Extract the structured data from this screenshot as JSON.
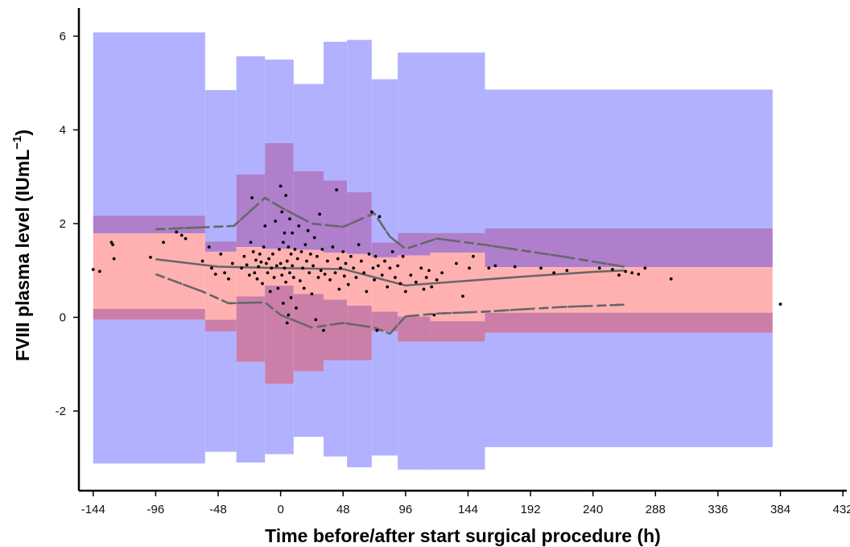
{
  "chart_data": {
    "type": "scatter",
    "title": "",
    "xlabel": "Time before/after start surgical procedure (h)",
    "ylabel": {
      "main": "FVIII plasma level (IUmL",
      "sup": "−1",
      "close": ")"
    },
    "xlim": [
      -155,
      435
    ],
    "ylim": [
      -3.7,
      6.6
    ],
    "xticks": [
      -144,
      -96,
      -48,
      0,
      48,
      96,
      144,
      192,
      240,
      288,
      336,
      384,
      432
    ],
    "yticks": [
      -2,
      0,
      2,
      4,
      6
    ],
    "grid": false,
    "legend": "none",
    "colors": {
      "outer_band": "#b1b1ff",
      "middle_band": "#af7fcb",
      "inner_band": "#ffb1b1",
      "overlap_band": "#cb7fa8",
      "points": "#000000",
      "lines": "#666666"
    },
    "bins": [
      {
        "x": [
          -144,
          -58
        ],
        "outer": [
          -3.12,
          6.08
        ],
        "middle": [
          -0.05,
          2.17
        ],
        "inner": [
          0.18,
          1.79
        ]
      },
      {
        "x": [
          -58,
          -34
        ],
        "outer": [
          -2.87,
          4.85
        ],
        "middle": [
          -0.3,
          1.62
        ],
        "inner": [
          -0.05,
          1.4
        ]
      },
      {
        "x": [
          -34,
          -12
        ],
        "outer": [
          -3.1,
          5.57
        ],
        "middle": [
          -0.95,
          3.05
        ],
        "inner": [
          0.45,
          1.5
        ]
      },
      {
        "x": [
          -12,
          10
        ],
        "outer": [
          -2.92,
          5.5
        ],
        "middle": [
          -1.42,
          3.72
        ],
        "inner": [
          0.68,
          1.46
        ]
      },
      {
        "x": [
          10,
          33
        ],
        "outer": [
          -2.55,
          4.98
        ],
        "middle": [
          -1.15,
          3.12
        ],
        "inner": [
          0.5,
          1.44
        ]
      },
      {
        "x": [
          33,
          51
        ],
        "outer": [
          -2.97,
          5.88
        ],
        "middle": [
          -0.92,
          2.92
        ],
        "inner": [
          0.38,
          1.38
        ]
      },
      {
        "x": [
          51,
          70
        ],
        "outer": [
          -3.2,
          5.92
        ],
        "middle": [
          -0.92,
          2.67
        ],
        "inner": [
          0.25,
          1.35
        ]
      },
      {
        "x": [
          70,
          90
        ],
        "outer": [
          -2.95,
          5.08
        ],
        "middle": [
          -0.3,
          1.6
        ],
        "inner": [
          0.12,
          1.28
        ]
      },
      {
        "x": [
          90,
          115
        ],
        "outer": [
          -3.25,
          5.65
        ],
        "middle": [
          -0.52,
          1.8
        ],
        "inner": [
          0.02,
          1.32
        ]
      },
      {
        "x": [
          115,
          157
        ],
        "outer": [
          -3.25,
          5.65
        ],
        "middle": [
          -0.52,
          1.8
        ],
        "inner": [
          -0.08,
          1.38
        ]
      },
      {
        "x": [
          157,
          378
        ],
        "outer": [
          -2.77,
          4.86
        ],
        "middle": [
          -0.33,
          1.9
        ],
        "inner": [
          0.1,
          1.07
        ]
      }
    ],
    "series": [
      {
        "style": "solid",
        "x": [
          -96,
          -48,
          0,
          48,
          96,
          144,
          192,
          240,
          264
        ],
        "y": [
          1.24,
          1.08,
          1.05,
          1.03,
          0.68,
          0.78,
          0.88,
          0.97,
          1.0
        ]
      },
      {
        "style": "dashed",
        "x": [
          -96,
          -60,
          -36,
          -12,
          0,
          24,
          48,
          72,
          84,
          96,
          120,
          156,
          216,
          264
        ],
        "y": [
          1.88,
          1.92,
          1.95,
          2.55,
          2.35,
          2.0,
          1.93,
          2.22,
          1.72,
          1.46,
          1.68,
          1.55,
          1.3,
          1.08
        ]
      },
      {
        "style": "dashed",
        "x": [
          -96,
          -60,
          -40,
          -12,
          0,
          24,
          48,
          72,
          84,
          96,
          120,
          156,
          216,
          264
        ],
        "y": [
          0.92,
          0.55,
          0.3,
          0.32,
          0.05,
          -0.22,
          -0.12,
          -0.22,
          -0.35,
          0.02,
          0.08,
          0.12,
          0.22,
          0.27
        ]
      },
      {
        "style": "dashdot",
        "x": [
          -96,
          -60,
          -36,
          -12,
          0,
          24,
          48,
          72,
          84,
          96,
          120,
          156,
          216,
          264
        ],
        "y": [
          1.88,
          1.92,
          1.95,
          2.55,
          2.35,
          2.0,
          1.93,
          2.22,
          1.72,
          1.46,
          1.68,
          1.55,
          1.3,
          1.08
        ]
      },
      {
        "style": "dashdot",
        "x": [
          -96,
          -60,
          -40,
          -12,
          0,
          24,
          48,
          72,
          84,
          96,
          120,
          156,
          216,
          264
        ],
        "y": [
          0.92,
          0.55,
          0.3,
          0.32,
          0.05,
          -0.22,
          -0.12,
          -0.22,
          -0.35,
          0.02,
          0.08,
          0.12,
          0.22,
          0.27
        ]
      }
    ],
    "points": [
      [
        -144,
        1.02
      ],
      [
        -139,
        0.98
      ],
      [
        -130,
        1.6
      ],
      [
        -129,
        1.55
      ],
      [
        -128,
        1.25
      ],
      [
        -100,
        1.28
      ],
      [
        -90,
        1.6
      ],
      [
        -80,
        1.82
      ],
      [
        -76,
        1.75
      ],
      [
        -73,
        1.68
      ],
      [
        -60,
        1.2
      ],
      [
        -55,
        1.5
      ],
      [
        -53,
        1.05
      ],
      [
        -50,
        0.92
      ],
      [
        -46,
        1.35
      ],
      [
        -43,
        0.95
      ],
      [
        -40,
        0.82
      ],
      [
        -37,
        1.15
      ],
      [
        -30,
        1.05
      ],
      [
        -28,
        1.3
      ],
      [
        -26,
        1.12
      ],
      [
        -24,
        0.9
      ],
      [
        -23,
        1.6
      ],
      [
        -22,
        2.55
      ],
      [
        -21,
        1.4
      ],
      [
        -20,
        0.95
      ],
      [
        -19,
        1.22
      ],
      [
        -18,
        0.82
      ],
      [
        -17,
        1.08
      ],
      [
        -16,
        1.35
      ],
      [
        -15,
        1.18
      ],
      [
        -14,
        0.72
      ],
      [
        -13,
        1.5
      ],
      [
        -12,
        1.95
      ],
      [
        -11,
        1.15
      ],
      [
        -10,
        0.95
      ],
      [
        -9,
        1.25
      ],
      [
        -8,
        0.55
      ],
      [
        -7,
        1.05
      ],
      [
        -6,
        1.35
      ],
      [
        -5,
        0.85
      ],
      [
        -4,
        2.05
      ],
      [
        -3,
        1.1
      ],
      [
        -2,
        0.62
      ],
      [
        -1,
        1.45
      ],
      [
        0,
        2.8
      ],
      [
        0,
        1.15
      ],
      [
        1,
        0.9
      ],
      [
        1,
        2.25
      ],
      [
        2,
        1.6
      ],
      [
        2,
        0.3
      ],
      [
        3,
        1.05
      ],
      [
        3,
        1.8
      ],
      [
        4,
        0.75
      ],
      [
        4,
        2.6
      ],
      [
        5,
        1.2
      ],
      [
        5,
        -0.12
      ],
      [
        6,
        1.5
      ],
      [
        6,
        0.05
      ],
      [
        7,
        2.1
      ],
      [
        7,
        0.95
      ],
      [
        8,
        1.35
      ],
      [
        8,
        0.42
      ],
      [
        9,
        1.1
      ],
      [
        9,
        1.8
      ],
      [
        10,
        0.85
      ],
      [
        11,
        1.45
      ],
      [
        12,
        0.2
      ],
      [
        13,
        1.25
      ],
      [
        14,
        1.95
      ],
      [
        15,
        0.78
      ],
      [
        16,
        1.4
      ],
      [
        17,
        1.05
      ],
      [
        18,
        0.62
      ],
      [
        19,
        1.55
      ],
      [
        20,
        1.2
      ],
      [
        21,
        1.85
      ],
      [
        22,
        0.95
      ],
      [
        23,
        1.35
      ],
      [
        24,
        0.5
      ],
      [
        25,
        1.1
      ],
      [
        26,
        1.7
      ],
      [
        27,
        -0.05
      ],
      [
        28,
        1.3
      ],
      [
        29,
        0.85
      ],
      [
        30,
        2.2
      ],
      [
        31,
        1.0
      ],
      [
        32,
        1.45
      ],
      [
        33,
        -0.28
      ],
      [
        34,
        0.92
      ],
      [
        36,
        1.2
      ],
      [
        38,
        0.8
      ],
      [
        40,
        1.5
      ],
      [
        42,
        0.95
      ],
      [
        43,
        2.72
      ],
      [
        44,
        1.25
      ],
      [
        45,
        0.6
      ],
      [
        46,
        1.05
      ],
      [
        48,
        1.4
      ],
      [
        49,
        0.88
      ],
      [
        50,
        1.15
      ],
      [
        52,
        0.7
      ],
      [
        54,
        1.3
      ],
      [
        56,
        1.05
      ],
      [
        58,
        0.85
      ],
      [
        60,
        1.55
      ],
      [
        62,
        1.2
      ],
      [
        64,
        0.95
      ],
      [
        66,
        0.55
      ],
      [
        68,
        1.35
      ],
      [
        70,
        2.25
      ],
      [
        71,
        1.05
      ],
      [
        72,
        0.8
      ],
      [
        73,
        1.3
      ],
      [
        74,
        -0.28
      ],
      [
        75,
        1.1
      ],
      [
        76,
        2.15
      ],
      [
        78,
        0.9
      ],
      [
        80,
        1.2
      ],
      [
        82,
        0.65
      ],
      [
        84,
        1.05
      ],
      [
        86,
        1.4
      ],
      [
        88,
        0.85
      ],
      [
        90,
        1.1
      ],
      [
        92,
        0.72
      ],
      [
        94,
        1.3
      ],
      [
        96,
        0.55
      ],
      [
        100,
        0.9
      ],
      [
        104,
        0.75
      ],
      [
        108,
        1.05
      ],
      [
        110,
        0.6
      ],
      [
        112,
        0.85
      ],
      [
        114,
        1.0
      ],
      [
        116,
        0.65
      ],
      [
        118,
        0.05
      ],
      [
        120,
        0.8
      ],
      [
        124,
        0.95
      ],
      [
        135,
        1.15
      ],
      [
        140,
        0.45
      ],
      [
        145,
        1.05
      ],
      [
        148,
        1.3
      ],
      [
        160,
        1.05
      ],
      [
        165,
        1.1
      ],
      [
        180,
        1.08
      ],
      [
        200,
        1.05
      ],
      [
        210,
        0.95
      ],
      [
        220,
        1.0
      ],
      [
        245,
        1.05
      ],
      [
        255,
        1.02
      ],
      [
        260,
        0.9
      ],
      [
        265,
        0.98
      ],
      [
        270,
        0.95
      ],
      [
        275,
        0.92
      ],
      [
        280,
        1.05
      ],
      [
        300,
        0.82
      ],
      [
        384,
        0.28
      ]
    ]
  }
}
